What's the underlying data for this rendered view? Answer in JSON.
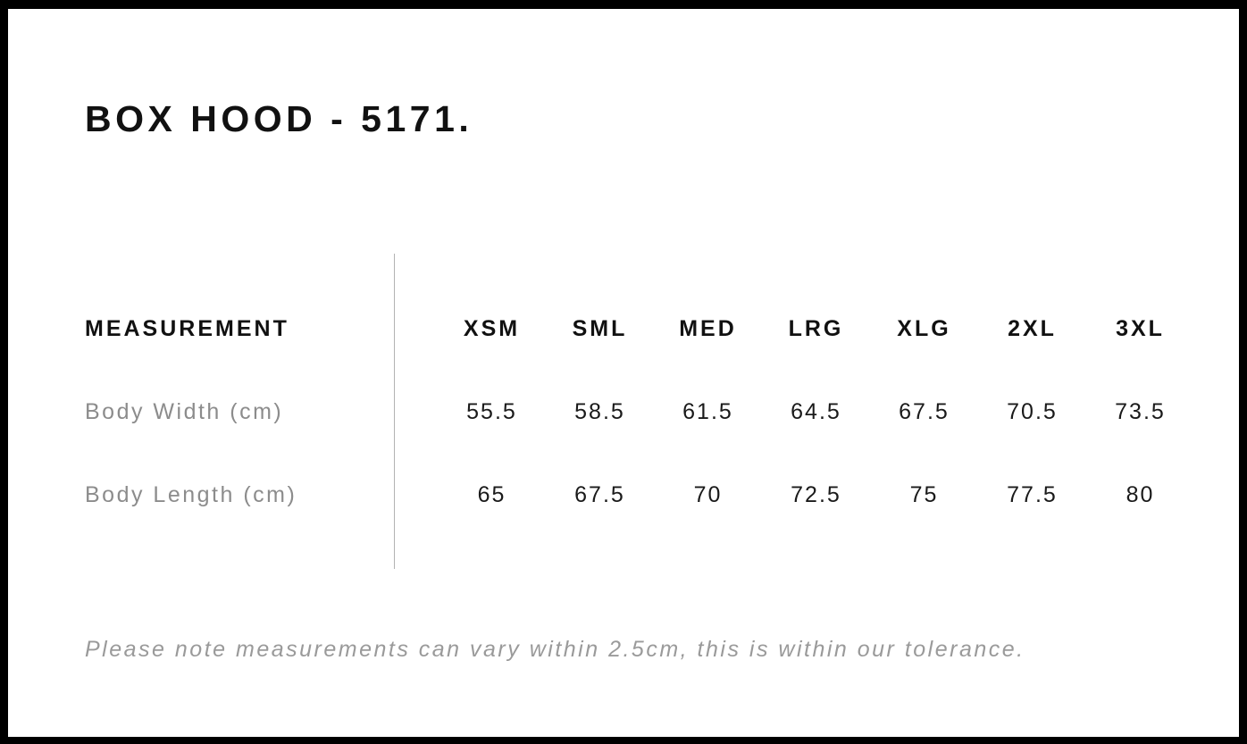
{
  "page": {
    "title": "BOX HOOD - 5171."
  },
  "table": {
    "label_header": "MEASUREMENT",
    "columns": [
      "XSM",
      "SML",
      "MED",
      "LRG",
      "XLG",
      "2XL",
      "3XL"
    ],
    "rows": [
      {
        "label": "Body Width (cm)",
        "values": [
          "55.5",
          "58.5",
          "61.5",
          "64.5",
          "67.5",
          "70.5",
          "73.5"
        ]
      },
      {
        "label": "Body Length (cm)",
        "values": [
          "65",
          "67.5",
          "70",
          "72.5",
          "75",
          "77.5",
          "80"
        ]
      }
    ]
  },
  "note": "Please note measurements can vary within 2.5cm, this is within our tolerance.",
  "colors": {
    "frame": "#000000",
    "background": "#ffffff",
    "text_primary": "#111111",
    "text_secondary": "#8c8c8c",
    "note_gray": "#9a9a9a",
    "divider": "#b3b3b3"
  },
  "chart_data": {
    "type": "table",
    "title": "BOX HOOD - 5171.",
    "columns": [
      "MEASUREMENT",
      "XSM",
      "SML",
      "MED",
      "LRG",
      "XLG",
      "2XL",
      "3XL"
    ],
    "rows": [
      [
        "Body Width (cm)",
        55.5,
        58.5,
        61.5,
        64.5,
        67.5,
        70.5,
        73.5
      ],
      [
        "Body Length (cm)",
        65,
        67.5,
        70,
        72.5,
        75,
        77.5,
        80
      ]
    ],
    "footnote": "Please note measurements can vary within 2.5cm, this is within our tolerance."
  }
}
